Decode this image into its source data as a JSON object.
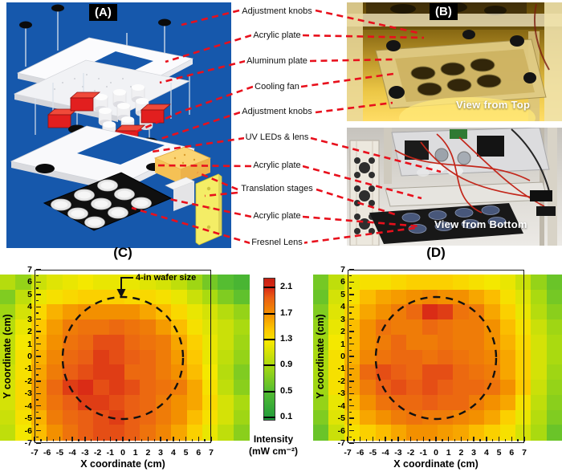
{
  "panels": {
    "a_label": "(A)",
    "b_label": "(B)"
  },
  "component_labels": [
    {
      "text": "Adjustment knobs"
    },
    {
      "text": "Acrylic plate"
    },
    {
      "text": "Aluminum plate"
    },
    {
      "text": "Cooling fan"
    },
    {
      "text": "Adjustment knobs"
    },
    {
      "text": "UV LEDs & lens"
    },
    {
      "text": "Acrylic plate"
    },
    {
      "text": "Translation stages"
    },
    {
      "text": "Acrylic plate"
    },
    {
      "text": "Fresnel Lens"
    }
  ],
  "photos": {
    "top_caption": "View from Top",
    "bottom_caption": "View from Bottom"
  },
  "colors": {
    "panel_a_bg": "#1658ac",
    "connector_red": "#e8101c",
    "frame": "#1a1a1a"
  },
  "colorbar": {
    "ticks": [
      "2.1",
      "1.7",
      "1.3",
      "0.9",
      "0.5",
      "0.1"
    ],
    "tick_values": [
      2.1,
      1.7,
      1.3,
      0.9,
      0.5,
      0.1
    ],
    "label_line1": "Intensity",
    "label_line2": "(mW cm⁻²)",
    "range_top": 2.25,
    "range_bottom": 0.05
  },
  "colormap_stops": [
    [
      0.05,
      "#1f9a3c"
    ],
    [
      0.5,
      "#55bd31"
    ],
    [
      0.9,
      "#aada10"
    ],
    [
      1.25,
      "#f4e800"
    ],
    [
      1.45,
      "#fdc800"
    ],
    [
      1.7,
      "#f39000"
    ],
    [
      1.95,
      "#ea5f14"
    ],
    [
      2.1,
      "#da2c16"
    ],
    [
      2.25,
      "#c51f12"
    ]
  ],
  "chart_data": [
    {
      "type": "heatmap",
      "panel": "C",
      "panel_label": "(C)",
      "xlabel": "X coordinate (cm)",
      "ylabel": "Y coordinate (cm)",
      "units": "mW cm⁻²",
      "x_ticks": [
        -7,
        -6,
        -5,
        -4,
        -3,
        -2,
        -1,
        0,
        1,
        2,
        3,
        4,
        5,
        6,
        7
      ],
      "y_ticks": [
        7,
        6,
        5,
        4,
        3,
        2,
        1,
        0,
        -1,
        -2,
        -3,
        -4,
        -5,
        -6,
        -7
      ],
      "grid_cols": 16,
      "grid_rows": 11,
      "x_extent_cm": [
        -9.9,
        9.9
      ],
      "y_extent_cm": [
        -6.9,
        6.9
      ],
      "wafer_circle": {
        "center_cm": [
          0,
          0
        ],
        "radius_cm": 4.8,
        "annotation": "4-in wafer size"
      },
      "values": [
        [
          0.95,
          0.8,
          1.05,
          1.15,
          1.2,
          1.25,
          1.2,
          1.2,
          1.2,
          1.15,
          1.1,
          1.0,
          0.85,
          0.65,
          0.5,
          0.4
        ],
        [
          0.7,
          1.0,
          1.2,
          1.3,
          1.35,
          1.4,
          1.4,
          1.4,
          1.35,
          1.35,
          1.3,
          1.2,
          1.05,
          0.9,
          0.7,
          0.55
        ],
        [
          0.85,
          1.1,
          1.35,
          1.55,
          1.65,
          1.7,
          1.7,
          1.7,
          1.7,
          1.6,
          1.5,
          1.35,
          1.2,
          1.1,
          0.95,
          0.8
        ],
        [
          0.95,
          1.2,
          1.45,
          1.65,
          1.8,
          1.85,
          1.85,
          1.9,
          1.85,
          1.8,
          1.65,
          1.5,
          1.3,
          1.15,
          1.05,
          0.9
        ],
        [
          1.0,
          1.25,
          1.5,
          1.7,
          1.85,
          1.9,
          2.0,
          2.0,
          1.9,
          1.85,
          1.8,
          1.6,
          1.4,
          1.2,
          1.05,
          0.85
        ],
        [
          1.0,
          1.3,
          1.55,
          1.75,
          1.9,
          1.95,
          2.05,
          2.0,
          1.95,
          1.9,
          1.8,
          1.65,
          1.45,
          1.2,
          1.0,
          0.8
        ],
        [
          1.05,
          1.3,
          1.6,
          1.8,
          1.95,
          2.0,
          2.05,
          2.05,
          1.9,
          1.9,
          1.8,
          1.7,
          1.5,
          1.25,
          0.95,
          0.7
        ],
        [
          1.1,
          1.35,
          1.65,
          1.9,
          2.05,
          2.1,
          2.0,
          2.05,
          2.0,
          1.9,
          1.85,
          1.8,
          1.6,
          1.3,
          1.0,
          0.75
        ],
        [
          1.1,
          1.35,
          1.65,
          1.85,
          1.95,
          2.05,
          2.05,
          2.0,
          1.95,
          1.9,
          1.8,
          1.7,
          1.6,
          1.35,
          1.1,
          0.9
        ],
        [
          1.05,
          1.3,
          1.55,
          1.8,
          1.9,
          1.95,
          2.0,
          2.05,
          1.95,
          1.9,
          1.8,
          1.7,
          1.5,
          1.3,
          1.1,
          0.85
        ],
        [
          1.0,
          1.25,
          1.5,
          1.7,
          1.85,
          1.95,
          2.0,
          2.0,
          1.95,
          1.85,
          1.75,
          1.6,
          1.4,
          1.2,
          1.0,
          0.75
        ]
      ]
    },
    {
      "type": "heatmap",
      "panel": "D",
      "panel_label": "(D)",
      "xlabel": "X coordinate (cm)",
      "ylabel": "Y coordinate (cm)",
      "units": "mW cm⁻²",
      "x_ticks": [
        -7,
        -6,
        -5,
        -4,
        -3,
        -2,
        -1,
        0,
        1,
        2,
        3,
        4,
        5,
        6,
        7
      ],
      "y_ticks": [
        7,
        6,
        5,
        4,
        3,
        2,
        1,
        0,
        -1,
        -2,
        -3,
        -4,
        -5,
        -6,
        -7
      ],
      "grid_cols": 16,
      "grid_rows": 11,
      "x_extent_cm": [
        -9.9,
        9.9
      ],
      "y_extent_cm": [
        -6.9,
        6.9
      ],
      "wafer_circle": {
        "center_cm": [
          0,
          0
        ],
        "radius_cm": 4.8
      },
      "values": [
        [
          0.65,
          1.0,
          1.2,
          1.3,
          1.3,
          1.35,
          1.4,
          1.4,
          1.4,
          1.35,
          1.3,
          1.25,
          1.2,
          1.05,
          0.8,
          0.6
        ],
        [
          0.6,
          1.1,
          1.3,
          1.5,
          1.6,
          1.65,
          1.7,
          1.75,
          1.7,
          1.7,
          1.6,
          1.5,
          1.3,
          1.15,
          0.9,
          0.65
        ],
        [
          0.7,
          1.15,
          1.4,
          1.6,
          1.7,
          1.8,
          1.9,
          2.1,
          2.05,
          1.85,
          1.8,
          1.6,
          1.4,
          1.2,
          0.95,
          0.75
        ],
        [
          0.8,
          1.2,
          1.5,
          1.7,
          1.85,
          1.8,
          1.8,
          1.9,
          1.85,
          1.8,
          1.8,
          1.7,
          1.5,
          1.3,
          1.05,
          0.85
        ],
        [
          0.85,
          1.25,
          1.5,
          1.7,
          1.8,
          1.9,
          1.8,
          1.8,
          1.85,
          1.8,
          1.8,
          1.7,
          1.55,
          1.35,
          1.1,
          0.9
        ],
        [
          0.9,
          1.3,
          1.55,
          1.75,
          1.85,
          1.9,
          1.9,
          1.85,
          1.9,
          1.85,
          1.8,
          1.75,
          1.6,
          1.4,
          1.1,
          0.9
        ],
        [
          0.9,
          1.3,
          1.6,
          1.9,
          2.0,
          1.95,
          1.9,
          2.0,
          2.0,
          1.9,
          1.85,
          1.8,
          1.6,
          1.4,
          1.1,
          0.85
        ],
        [
          0.85,
          1.3,
          1.6,
          1.8,
          1.95,
          2.0,
          1.95,
          2.0,
          1.95,
          1.9,
          1.9,
          1.85,
          1.7,
          1.45,
          1.05,
          0.8
        ],
        [
          0.8,
          1.2,
          1.5,
          1.7,
          1.85,
          1.9,
          1.9,
          1.95,
          1.9,
          1.9,
          1.8,
          1.7,
          1.6,
          1.3,
          1.0,
          0.75
        ],
        [
          0.7,
          1.15,
          1.4,
          1.6,
          1.7,
          1.8,
          1.85,
          1.8,
          1.8,
          1.75,
          1.7,
          1.6,
          1.4,
          1.2,
          0.95,
          0.7
        ],
        [
          0.6,
          1.05,
          1.3,
          1.4,
          1.5,
          1.6,
          1.7,
          1.7,
          1.65,
          1.6,
          1.5,
          1.4,
          1.3,
          1.1,
          0.9,
          0.6
        ]
      ]
    }
  ]
}
